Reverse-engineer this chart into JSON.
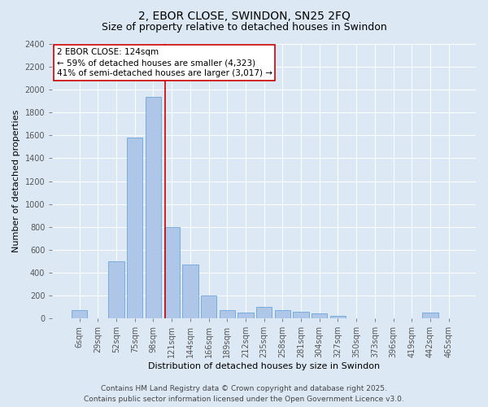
{
  "title": "2, EBOR CLOSE, SWINDON, SN25 2FQ",
  "subtitle": "Size of property relative to detached houses in Swindon",
  "xlabel": "Distribution of detached houses by size in Swindon",
  "ylabel": "Number of detached properties",
  "bin_labels": [
    "6sqm",
    "29sqm",
    "52sqm",
    "75sqm",
    "98sqm",
    "121sqm",
    "144sqm",
    "166sqm",
    "189sqm",
    "212sqm",
    "235sqm",
    "258sqm",
    "281sqm",
    "304sqm",
    "327sqm",
    "350sqm",
    "373sqm",
    "396sqm",
    "419sqm",
    "442sqm",
    "465sqm"
  ],
  "bar_values": [
    75,
    0,
    500,
    1580,
    1940,
    800,
    470,
    200,
    75,
    50,
    100,
    75,
    60,
    40,
    20,
    0,
    0,
    0,
    0,
    50,
    0
  ],
  "bar_color": "#aec6e8",
  "bar_edge_color": "#5b9bd5",
  "annotation_label": "2 EBOR CLOSE: 124sqm",
  "annotation_line1": "← 59% of detached houses are smaller (4,323)",
  "annotation_line2": "41% of semi-detached houses are larger (3,017) →",
  "annotation_box_color": "#ffffff",
  "annotation_box_edge": "#cc0000",
  "vline_color": "#cc0000",
  "vline_x_index": 4.63,
  "ylim": [
    0,
    2400
  ],
  "yticks": [
    0,
    200,
    400,
    600,
    800,
    1000,
    1200,
    1400,
    1600,
    1800,
    2000,
    2200,
    2400
  ],
  "bg_color": "#dce9f5",
  "plot_bg_color": "#dce9f5",
  "footer_line1": "Contains HM Land Registry data © Crown copyright and database right 2025.",
  "footer_line2": "Contains public sector information licensed under the Open Government Licence v3.0.",
  "title_fontsize": 10,
  "subtitle_fontsize": 9,
  "axis_label_fontsize": 8,
  "tick_fontsize": 7,
  "annotation_fontsize": 7.5,
  "footer_fontsize": 6.5
}
